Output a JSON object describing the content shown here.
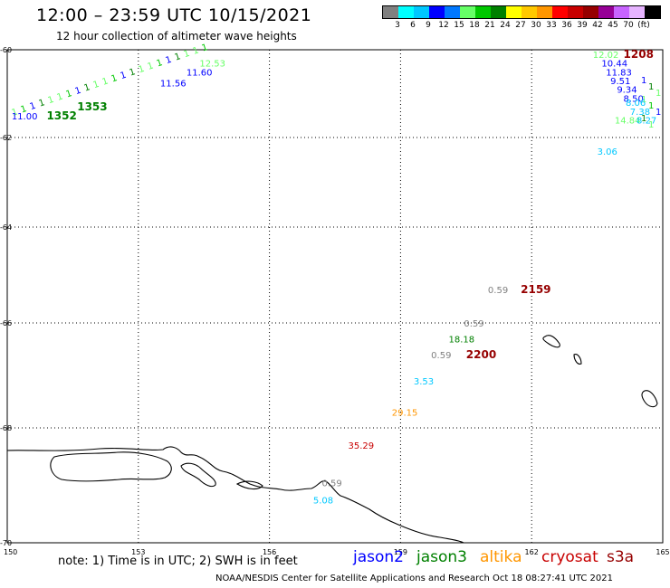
{
  "header": {
    "title": "12:00 – 23:59 UTC 10/15/2021",
    "subtitle": "12 hour collection of altimeter wave heights"
  },
  "legend": {
    "colors": [
      "#808080",
      "#00ffff",
      "#00c8ff",
      "#0000ff",
      "#0078ff",
      "#66ff66",
      "#00c800",
      "#008000",
      "#ffff00",
      "#ffc800",
      "#ff9600",
      "#ff0000",
      "#c80000",
      "#960000",
      "#960096",
      "#c864ff",
      "#e6b4ff",
      "#000000"
    ],
    "labels": [
      "3",
      "6",
      "9",
      "12",
      "15",
      "18",
      "21",
      "24",
      "27",
      "30",
      "33",
      "36",
      "39",
      "42",
      "45",
      "70",
      "(ft)"
    ]
  },
  "map": {
    "lon_range": [
      150,
      165
    ],
    "lat_range": [
      -60,
      -70
    ],
    "lon_ticks": [
      "150",
      "153",
      "156",
      "159",
      "162",
      "165"
    ],
    "lat_ticks": [
      "-60",
      "-62",
      "-64",
      "-66",
      "-68",
      "-70"
    ],
    "grid": "dotted"
  },
  "observations": [
    {
      "text": "12.02",
      "lon": 163.4,
      "lat": -60.1,
      "color": "#66ff66"
    },
    {
      "text": "1208",
      "lon": 164.1,
      "lat": -60.1,
      "color": "#960000",
      "bold": true
    },
    {
      "text": "10.44",
      "lon": 163.6,
      "lat": -60.3,
      "color": "#0000ff"
    },
    {
      "text": "11.83",
      "lon": 163.7,
      "lat": -60.5,
      "color": "#0000ff"
    },
    {
      "text": "9.51",
      "lon": 163.8,
      "lat": -60.7,
      "color": "#0000ff"
    },
    {
      "text": "9.34",
      "lon": 163.95,
      "lat": -60.9,
      "color": "#0000ff"
    },
    {
      "text": "8.50",
      "lon": 164.1,
      "lat": -61.1,
      "color": "#0000ff"
    },
    {
      "text": "8.06",
      "lon": 164.15,
      "lat": -61.2,
      "color": "#00c8ff"
    },
    {
      "text": "7.38",
      "lon": 164.25,
      "lat": -61.4,
      "color": "#00c8ff"
    },
    {
      "text": "14.84",
      "lon": 163.9,
      "lat": -61.6,
      "color": "#66ff66"
    },
    {
      "text": "8.27",
      "lon": 164.4,
      "lat": -61.6,
      "color": "#00c8ff"
    },
    {
      "text": "3.06",
      "lon": 163.5,
      "lat": -62.3,
      "color": "#00c8ff"
    },
    {
      "text": "0.59",
      "lon": 161.0,
      "lat": -65.3,
      "color": "#808080"
    },
    {
      "text": "2159",
      "lon": 161.75,
      "lat": -65.3,
      "color": "#960000",
      "bold": true
    },
    {
      "text": "0.59",
      "lon": 160.45,
      "lat": -66.0,
      "color": "#808080"
    },
    {
      "text": "18.18",
      "lon": 160.1,
      "lat": -66.3,
      "color": "#008000"
    },
    {
      "text": "0.59",
      "lon": 159.7,
      "lat": -66.6,
      "color": "#808080"
    },
    {
      "text": "2200",
      "lon": 160.5,
      "lat": -66.6,
      "color": "#960000",
      "bold": true
    },
    {
      "text": "3.53",
      "lon": 159.3,
      "lat": -67.1,
      "color": "#00c8ff"
    },
    {
      "text": "29.15",
      "lon": 158.8,
      "lat": -67.7,
      "color": "#ff9600"
    },
    {
      "text": "35.29",
      "lon": 157.8,
      "lat": -68.3,
      "color": "#c80000"
    },
    {
      "text": "0.59",
      "lon": 157.2,
      "lat": -68.95,
      "color": "#808080"
    },
    {
      "text": "5.08",
      "lon": 157.0,
      "lat": -69.25,
      "color": "#00c8ff"
    },
    {
      "text": "11.00",
      "lon": 150.1,
      "lat": -61.5,
      "color": "#0000ff"
    },
    {
      "text": "1352",
      "lon": 150.9,
      "lat": -61.5,
      "color": "#008000",
      "bold": true
    },
    {
      "text": "1353",
      "lon": 151.6,
      "lat": -61.3,
      "color": "#008000",
      "bold": true
    },
    {
      "text": "11.56",
      "lon": 153.5,
      "lat": -60.75,
      "color": "#0000ff"
    },
    {
      "text": "11.60",
      "lon": 154.1,
      "lat": -60.5,
      "color": "#0000ff"
    },
    {
      "text": "12.53",
      "lon": 154.4,
      "lat": -60.3,
      "color": "#66ff66"
    }
  ],
  "footer": {
    "note": "note: 1) Time is in UTC; 2) SWH is in feet",
    "satellites": [
      {
        "name": "jason2",
        "color": "#0000ff"
      },
      {
        "name": "jason3",
        "color": "#008000"
      },
      {
        "name": "altika",
        "color": "#ff9600"
      },
      {
        "name": "cryosat",
        "color": "#c80000"
      },
      {
        "name": "s3a",
        "color": "#960000"
      }
    ],
    "credit": "NOAA/NESDIS Center for Satellite Applications and Research    Oct 18 08:27:41 UTC 2021"
  }
}
